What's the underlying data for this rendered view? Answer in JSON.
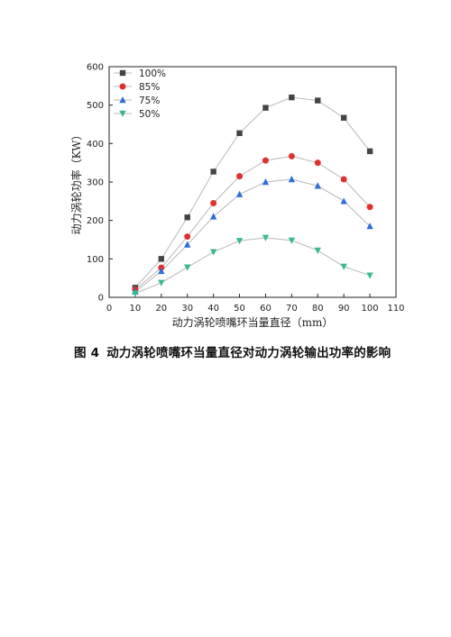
{
  "chart_data": {
    "type": "line",
    "xlabel": "动力涡轮喷嘴环当量直径（mm）",
    "ylabel": "动力涡轮功率（KW）",
    "xlim": [
      0,
      110
    ],
    "ylim": [
      0,
      600
    ],
    "xticks": [
      "0",
      "10",
      "20",
      "30",
      "40",
      "50",
      "60",
      "70",
      "80",
      "90",
      "100",
      "110"
    ],
    "yticks": [
      "0",
      "100",
      "200",
      "300",
      "400",
      "500",
      "600"
    ],
    "legend_position": "top-left",
    "grid": false,
    "x": [
      10,
      20,
      30,
      40,
      50,
      60,
      70,
      80,
      90,
      100
    ],
    "series": [
      {
        "name": "100%",
        "color": "#444444",
        "marker": "square",
        "values": [
          25,
          100,
          208,
          327,
          427,
          493,
          520,
          512,
          467,
          380
        ]
      },
      {
        "name": "85%",
        "color": "#e03030",
        "marker": "circle",
        "values": [
          20,
          77,
          158,
          245,
          315,
          356,
          367,
          350,
          307,
          235
        ]
      },
      {
        "name": "75%",
        "color": "#2d6fd6",
        "marker": "triangle-up",
        "values": [
          15,
          68,
          137,
          210,
          268,
          300,
          307,
          290,
          250,
          185
        ]
      },
      {
        "name": "50%",
        "color": "#3aba8c",
        "marker": "triangle-down",
        "values": [
          10,
          38,
          78,
          118,
          147,
          155,
          148,
          122,
          80,
          57
        ]
      }
    ]
  },
  "caption": {
    "figure_number": "图 4",
    "text": "动力涡轮喷嘴环当量直径对动力涡轮输出功率的影响"
  }
}
